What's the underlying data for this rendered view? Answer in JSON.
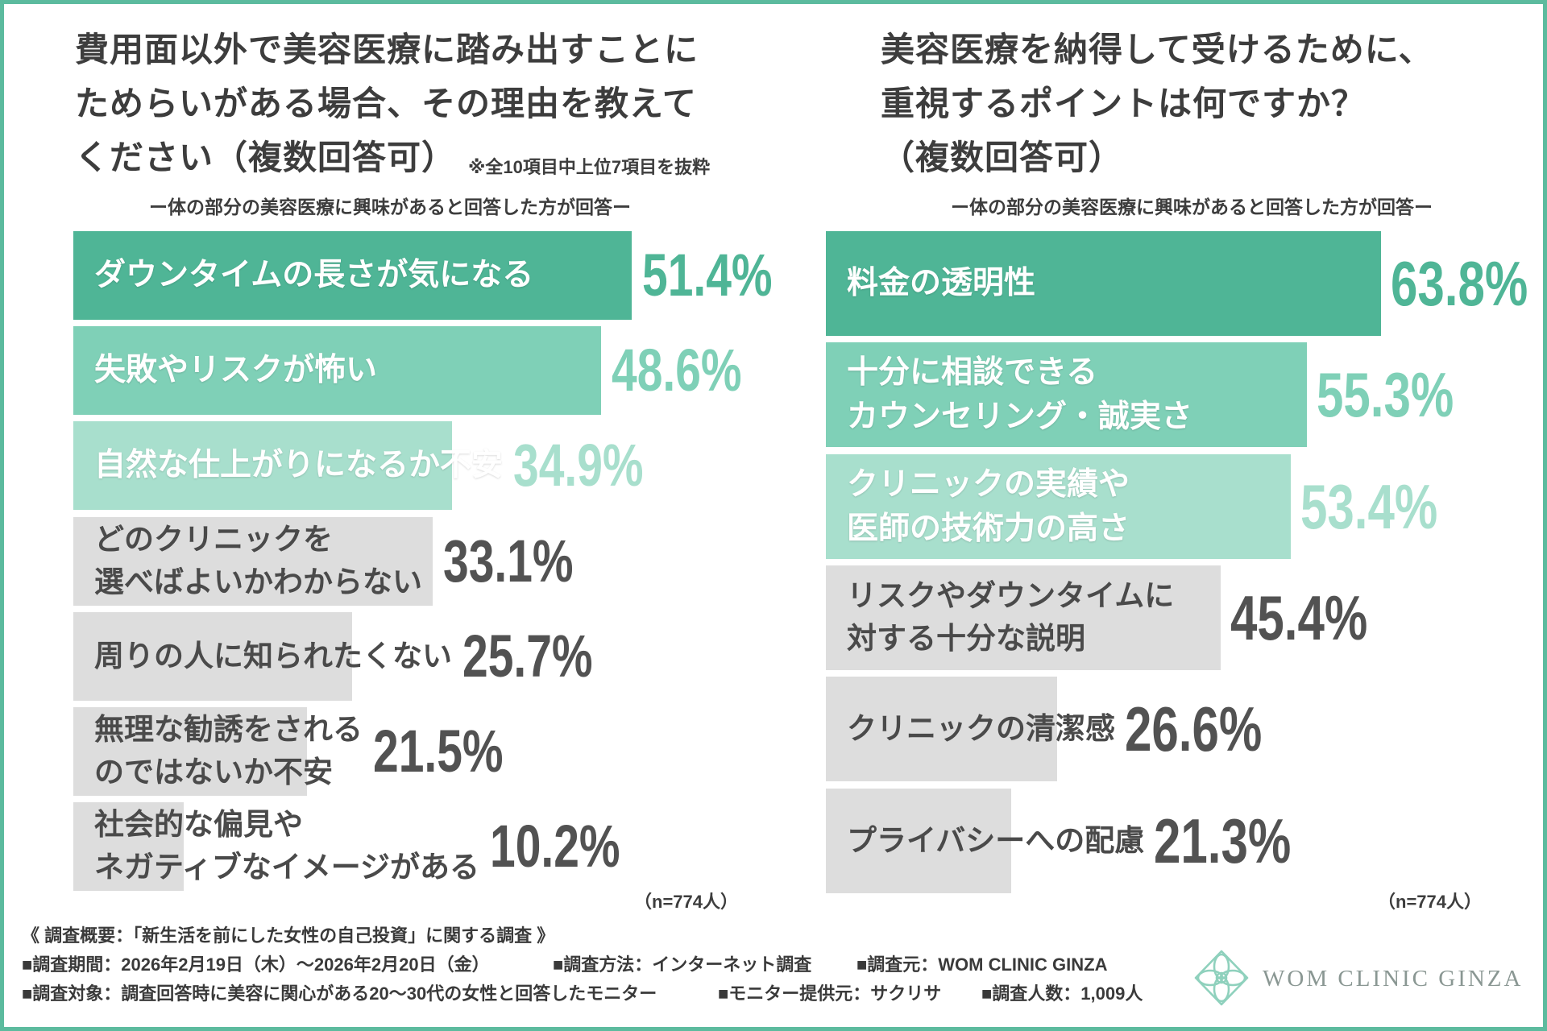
{
  "colors": {
    "frame": "#5cbb9e",
    "text": "#3d3d3d",
    "logo_icon": "#8fd1bd",
    "logo_text": "#8a9793"
  },
  "chart_data": [
    {
      "type": "bar",
      "orientation": "horizontal",
      "title_lines": [
        "費用面以外で美容医療に踏み出すことに",
        "ためらいがある場合、その理由を教えて",
        "ください（複数回答可）"
      ],
      "note": "※全10項目中上位7項目を抜粋",
      "subtitle": "ー体の部分の美容医療に興味があると回答した方が回答ー",
      "categories": [
        "ダウンタイムの長さが気になる",
        "失敗やリスクが怖い",
        "自然な仕上がりになるか不安",
        "どのクリニックを\n選べばよいかわからない",
        "周りの人に知られたくない",
        "無理な勧誘をされる\nのではないか不安",
        "社会的な偏見や\nネガティブなイメージがある"
      ],
      "values": [
        51.4,
        48.6,
        34.9,
        33.1,
        25.7,
        21.5,
        10.2
      ],
      "unit": "%",
      "bar_colors": [
        "#4fb596",
        "#7fd0b7",
        "#a8dfcd",
        "#dddddd",
        "#dddddd",
        "#dddddd",
        "#dddddd"
      ],
      "label_colors": [
        "#ffffff",
        "#ffffff",
        "#ffffff",
        "#4a4a4a",
        "#4a4a4a",
        "#4a4a4a",
        "#4a4a4a"
      ],
      "value_colors": [
        "#4fb596",
        "#7fd0b7",
        "#a8dfcd",
        "#525252",
        "#525252",
        "#525252",
        "#525252"
      ],
      "sample_size": "（n=774人）",
      "grid": false,
      "legend": "none"
    },
    {
      "type": "bar",
      "orientation": "horizontal",
      "title_lines": [
        "美容医療を納得して受けるために、",
        "重視するポイントは何ですか？",
        "（複数回答可）"
      ],
      "subtitle": "ー体の部分の美容医療に興味があると回答した方が回答ー",
      "categories": [
        "料金の透明性",
        "十分に相談できる\nカウンセリング・誠実さ",
        "クリニックの実績や\n医師の技術力の高さ",
        "リスクやダウンタイムに\n対する十分な説明",
        "クリニックの清潔感",
        "プライバシーへの配慮"
      ],
      "values": [
        63.8,
        55.3,
        53.4,
        45.4,
        26.6,
        21.3
      ],
      "unit": "%",
      "bar_colors": [
        "#4fb596",
        "#7fd0b7",
        "#a8dfcd",
        "#dddddd",
        "#dddddd",
        "#dddddd"
      ],
      "label_colors": [
        "#ffffff",
        "#ffffff",
        "#ffffff",
        "#4a4a4a",
        "#4a4a4a",
        "#4a4a4a"
      ],
      "value_colors": [
        "#4fb596",
        "#7fd0b7",
        "#a8dfcd",
        "#525252",
        "#525252",
        "#525252"
      ],
      "sample_size": "（n=774人）",
      "grid": false,
      "legend": "none"
    }
  ],
  "survey": {
    "heading": "《 調査概要：「新生活を前にした女性の自己投資」に関する調査 》",
    "period": "■調査期間：2026年2月19日（木）〜2026年2月20日（金）",
    "method": "■調査方法：インターネット調査",
    "source": "■調査元：WOM CLINIC GINZA",
    "target": "■調査対象：調査回答時に美容に関心がある20〜30代の女性と回答したモニター",
    "provider": "■モニター提供元：サクリサ",
    "count": "■調査人数：1,009人"
  },
  "logo": {
    "text": "WOM CLINIC GINZA",
    "icon": "clinic-flower-logo-icon"
  }
}
